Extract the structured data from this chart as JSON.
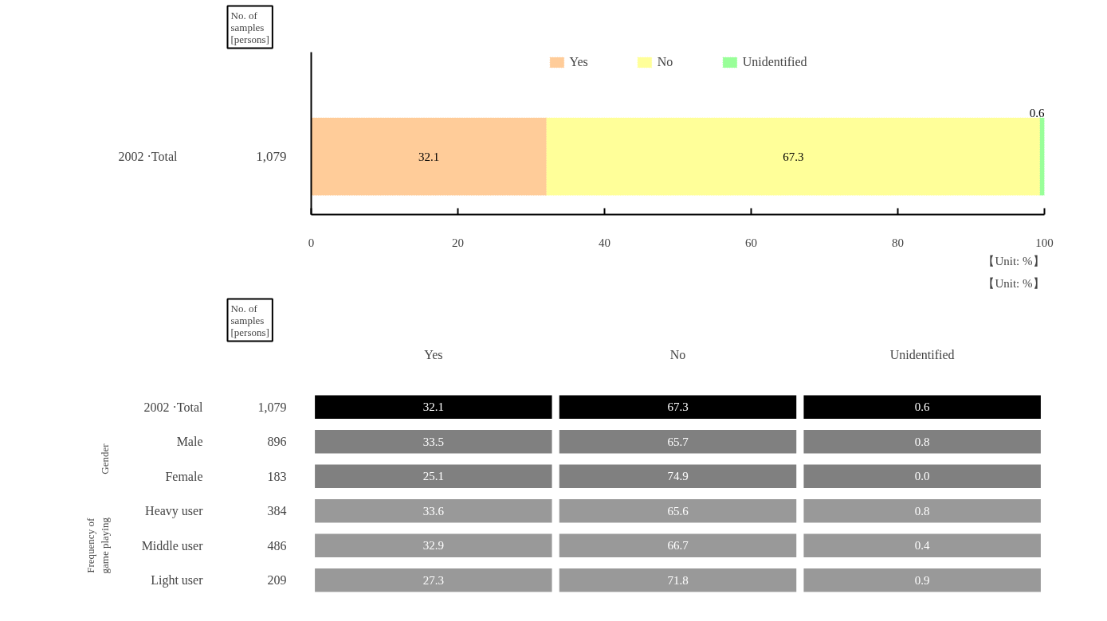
{
  "chart_data": [
    {
      "type": "bar",
      "orientation": "horizontal",
      "stacked": true,
      "categories": [
        "2002 ·Total"
      ],
      "series": [
        {
          "name": "Yes",
          "color": "#ffcc99",
          "values": [
            32.1
          ]
        },
        {
          "name": "No",
          "color": "#ffff99",
          "values": [
            67.3
          ]
        },
        {
          "name": "Unidentified",
          "color": "#99ff99",
          "values": [
            0.6
          ]
        }
      ],
      "xlim": [
        0,
        100
      ],
      "xticks": [
        0,
        20,
        40,
        60,
        80,
        100
      ],
      "data_labels": true,
      "grid": false,
      "legend": "top",
      "annotations": [
        "No. of samples [persons]",
        "1,079",
        "【Unit: %】"
      ]
    },
    {
      "type": "heatmap",
      "categories": [
        "Yes",
        "No",
        "Unidentified"
      ],
      "y_categories": [
        "2002 ·Total",
        "Male",
        "Female",
        "Heavy user",
        "Middle user",
        "Light user"
      ],
      "y2_categories": [
        "1,079",
        "896",
        "183",
        "384",
        "486",
        "209"
      ],
      "cells": [
        [
          32.1,
          67.3,
          0.6
        ],
        [
          33.5,
          65.7,
          0.8
        ],
        [
          25.1,
          74.9,
          0.0
        ],
        [
          33.6,
          65.6,
          0.8
        ],
        [
          32.9,
          66.7,
          0.4
        ],
        [
          27.3,
          71.8,
          0.9
        ]
      ],
      "cell_labels": [
        [
          "32.1",
          "67.3",
          "0.6"
        ],
        [
          "33.5",
          "65.7",
          "0.8"
        ],
        [
          "25.1",
          "74.9",
          "0.0"
        ],
        [
          "33.6",
          "65.6",
          "0.8"
        ],
        [
          "32.9",
          "66.7",
          "0.4"
        ],
        [
          "27.3",
          "71.8",
          "0.9"
        ]
      ],
      "colors": [
        "#000000",
        "#808080",
        "#808080",
        "#999999",
        "#999999",
        "#999999"
      ],
      "annotations": [
        "【Unit: %】",
        "No. of samples [persons]",
        "Gender",
        "Frequency of game playing"
      ]
    }
  ]
}
